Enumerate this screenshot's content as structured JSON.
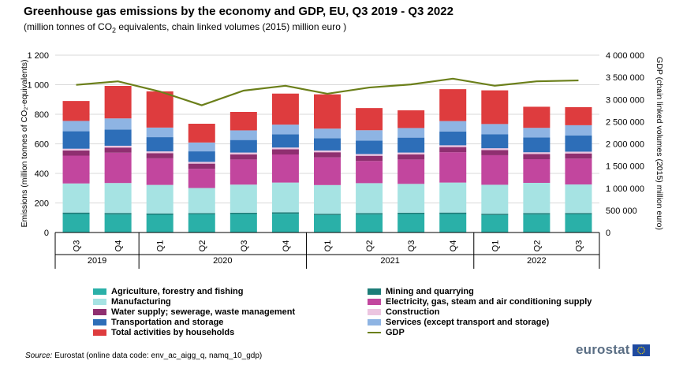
{
  "header": {
    "title": "Greenhouse gas emissions by the economy and GDP, EU, Q3 2019 - Q3 2022",
    "subtitle_pre": "(million tonnes of CO",
    "subtitle_sub": "2",
    "subtitle_post": " equivalents, chain linked volumes (2015) million euro )"
  },
  "footer": {
    "source_label": "Source:",
    "source_text": " Eurostat (online data code: env_ac_aigg_q, namq_10_gdp)",
    "logo_text": "eurostat"
  },
  "chart_data": {
    "type": "bar",
    "stacked": true,
    "title": "Greenhouse gas emissions by the economy and GDP, EU, Q3 2019 - Q3 2022",
    "ylabel": "Emissions (million tonnes of CO₂-equivalents)",
    "y2label": "GDP (chain linked volumes (2015) million euro)",
    "ylim": [
      0,
      1200
    ],
    "y2lim": [
      0,
      4000000
    ],
    "yticks": [
      "0",
      "200",
      "400",
      "600",
      "800",
      "1 000",
      "1 200"
    ],
    "y2ticks": [
      "0",
      "500 000",
      "1 000 000",
      "1 500 000",
      "2 000 000",
      "2 500 000",
      "3 000 000",
      "3 500 000",
      "4 000 000"
    ],
    "categories": [
      "Q3",
      "Q4",
      "Q1",
      "Q2",
      "Q3",
      "Q4",
      "Q1",
      "Q2",
      "Q3",
      "Q4",
      "Q1",
      "Q2",
      "Q3"
    ],
    "years": [
      {
        "label": "2019",
        "span": 2
      },
      {
        "label": "2020",
        "span": 4
      },
      {
        "label": "2021",
        "span": 4
      },
      {
        "label": "2022",
        "span": 3
      }
    ],
    "grid": true,
    "legend_position": "bottom",
    "series": [
      {
        "name": "Agriculture, forestry and fishing",
        "color": "#2ab0a8",
        "values": [
          125,
          122,
          120,
          123,
          125,
          127,
          118,
          122,
          125,
          125,
          118,
          122,
          123
        ]
      },
      {
        "name": "Mining and quarrying",
        "color": "#1c7c78",
        "values": [
          10,
          10,
          9,
          8,
          9,
          10,
          9,
          9,
          9,
          10,
          9,
          9,
          9
        ]
      },
      {
        "name": "Manufacturing",
        "color": "#a6e3e3",
        "values": [
          197,
          203,
          193,
          170,
          190,
          201,
          194,
          203,
          195,
          203,
          196,
          205,
          193
        ]
      },
      {
        "name": "Electricity, gas, steam and air conditioning supply",
        "color": "#c2469e",
        "values": [
          188,
          205,
          180,
          130,
          170,
          190,
          187,
          150,
          165,
          205,
          200,
          160,
          175
        ]
      },
      {
        "name": "Water supply; sewerage, waste management",
        "color": "#8f2f70",
        "values": [
          35,
          35,
          35,
          35,
          35,
          35,
          35,
          35,
          35,
          35,
          35,
          35,
          35
        ]
      },
      {
        "name": "Construction",
        "color": "#ecc5e0",
        "values": [
          12,
          12,
          12,
          12,
          12,
          12,
          12,
          12,
          12,
          12,
          12,
          12,
          12
        ]
      },
      {
        "name": "Transportation and storage",
        "color": "#2d6eb8",
        "values": [
          118,
          110,
          96,
          71,
          85,
          90,
          83,
          91,
          101,
          94,
          94,
          100,
          109
        ]
      },
      {
        "name": "Services (except transport and storage)",
        "color": "#8eb4e3",
        "values": [
          70,
          75,
          65,
          60,
          65,
          65,
          65,
          70,
          65,
          70,
          70,
          65,
          70
        ]
      },
      {
        "name": "Total activities by households",
        "color": "#de3c3e",
        "values": [
          135,
          220,
          245,
          127,
          125,
          210,
          232,
          150,
          120,
          216,
          228,
          143,
          122
        ]
      }
    ],
    "line": {
      "name": "GDP",
      "color": "#6b7f1a",
      "axis": "secondary",
      "values": [
        3330000,
        3410000,
        3180000,
        2870000,
        3200000,
        3310000,
        3130000,
        3270000,
        3340000,
        3470000,
        3310000,
        3410000,
        3430000
      ]
    }
  }
}
